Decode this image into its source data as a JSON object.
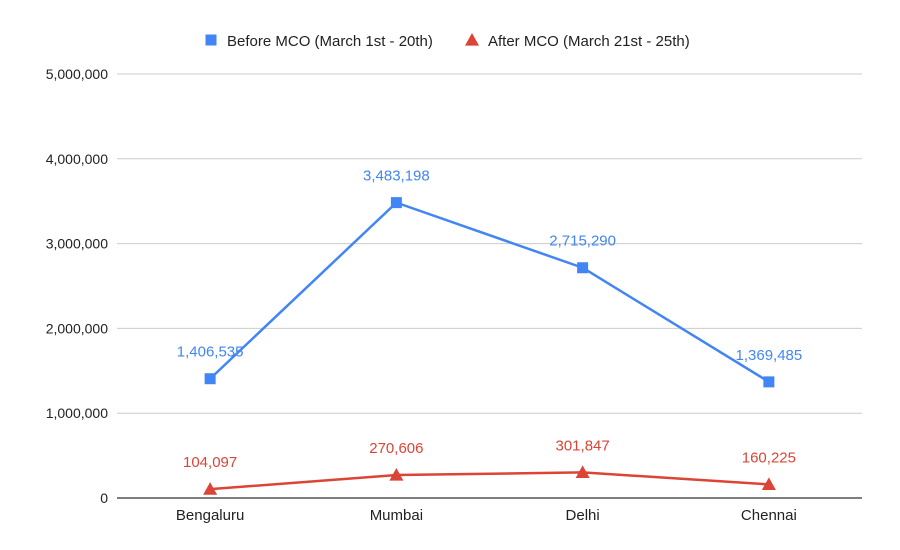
{
  "chart_data": {
    "type": "line",
    "categories": [
      "Bengaluru",
      "Mumbai",
      "Delhi",
      "Chennai"
    ],
    "series": [
      {
        "name": "Before MCO (March 1st - 20th)",
        "values": [
          1406535,
          3483198,
          2715290,
          1369485
        ],
        "labels": [
          "1,406,535",
          "3,483,198",
          "2,715,290",
          "1,369,485"
        ],
        "color": "#4285f4",
        "marker": "square"
      },
      {
        "name": "After MCO (March 21st - 25th)",
        "values": [
          104097,
          270606,
          301847,
          160225
        ],
        "labels": [
          "104,097",
          "270,606",
          "301,847",
          "160,225"
        ],
        "color": "#db4437",
        "marker": "triangle"
      }
    ],
    "y_ticks": [
      0,
      1000000,
      2000000,
      3000000,
      4000000,
      5000000
    ],
    "y_tick_labels": [
      "0",
      "1,000,000",
      "2,000,000",
      "3,000,000",
      "4,000,000",
      "5,000,000"
    ],
    "ylim": [
      0,
      5000000
    ],
    "grid": true,
    "legend_position": "top"
  }
}
